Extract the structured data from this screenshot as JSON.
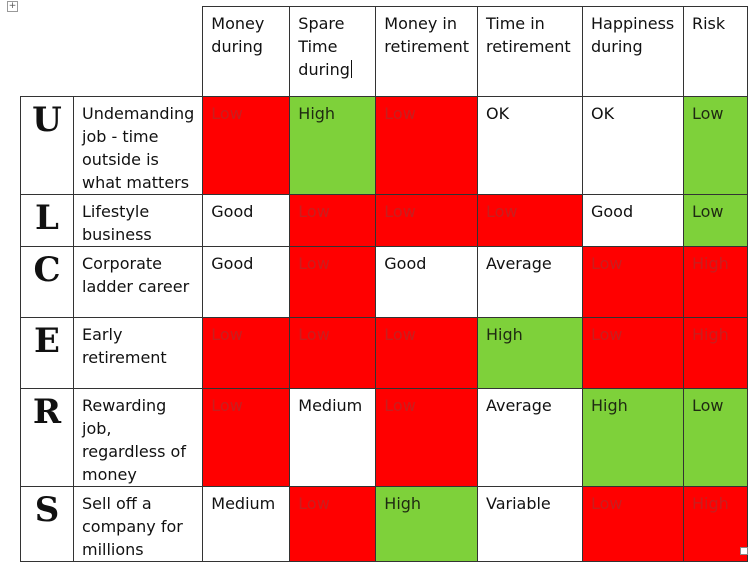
{
  "headers": [
    "Money during",
    "Spare Time during",
    "Money in retirement",
    "Time in retirement",
    "Happiness during",
    "Risk"
  ],
  "rows": [
    {
      "letter": "U",
      "label": "Undemanding job - time outside is what matters",
      "cells": [
        {
          "text": "Low",
          "color": "red"
        },
        {
          "text": "High",
          "color": "green"
        },
        {
          "text": "Low",
          "color": "red"
        },
        {
          "text": "OK",
          "color": "white"
        },
        {
          "text": "OK",
          "color": "white"
        },
        {
          "text": "Low",
          "color": "green"
        }
      ]
    },
    {
      "letter": "L",
      "label": "Lifestyle business",
      "cells": [
        {
          "text": "Good",
          "color": "white"
        },
        {
          "text": "Low",
          "color": "red"
        },
        {
          "text": "Low",
          "color": "red"
        },
        {
          "text": "Low",
          "color": "red"
        },
        {
          "text": "Good",
          "color": "white"
        },
        {
          "text": "Low",
          "color": "green"
        }
      ]
    },
    {
      "letter": "C",
      "label": "Corporate ladder career",
      "cells": [
        {
          "text": "Good",
          "color": "white"
        },
        {
          "text": "Low",
          "color": "red"
        },
        {
          "text": "Good",
          "color": "white"
        },
        {
          "text": "Average",
          "color": "white"
        },
        {
          "text": "Low",
          "color": "red"
        },
        {
          "text": "High",
          "color": "red"
        }
      ]
    },
    {
      "letter": "E",
      "label": "Early retirement",
      "cells": [
        {
          "text": "Low",
          "color": "red"
        },
        {
          "text": "Low",
          "color": "red"
        },
        {
          "text": "Low",
          "color": "red"
        },
        {
          "text": "High",
          "color": "green"
        },
        {
          "text": "Low",
          "color": "red"
        },
        {
          "text": "High",
          "color": "red"
        }
      ]
    },
    {
      "letter": "R",
      "label": "Rewarding job, regardless of money",
      "cells": [
        {
          "text": "Low",
          "color": "red"
        },
        {
          "text": "Medium",
          "color": "white"
        },
        {
          "text": "Low",
          "color": "red"
        },
        {
          "text": "Average",
          "color": "white"
        },
        {
          "text": "High",
          "color": "green"
        },
        {
          "text": "Low",
          "color": "green"
        }
      ]
    },
    {
      "letter": "S",
      "label": "Sell off a company for millions",
      "cells": [
        {
          "text": "Medium",
          "color": "white"
        },
        {
          "text": "Low",
          "color": "red"
        },
        {
          "text": "High",
          "color": "green"
        },
        {
          "text": "Variable",
          "color": "white"
        },
        {
          "text": "Low",
          "color": "red"
        },
        {
          "text": "High",
          "color": "red"
        }
      ]
    }
  ],
  "colors": {
    "red": "#ff0000",
    "green": "#7ed13a",
    "white": "#ffffff"
  },
  "icons": {
    "move_handle": "move-icon",
    "resize_handle": "resize-icon"
  }
}
